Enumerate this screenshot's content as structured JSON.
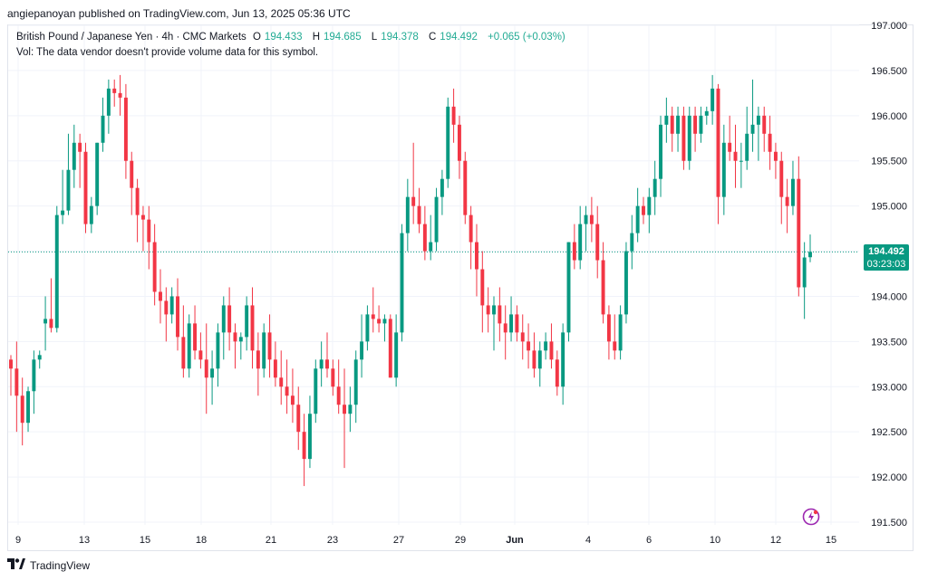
{
  "header": {
    "publisher": "angiepanoyan published on TradingView.com, Jun 13, 2025 05:36 UTC"
  },
  "legend": {
    "symbol": "British Pound / Japanese Yen · 4h · CMC Markets",
    "open_label": "O",
    "open": "194.433",
    "high_label": "H",
    "high": "194.685",
    "low_label": "L",
    "low": "194.378",
    "close_label": "C",
    "close": "194.492",
    "change": "+0.065 (+0.03%)",
    "volume_note": "Vol: The data vendor doesn't provide volume data for this symbol."
  },
  "price_tag": {
    "price": "194.492",
    "countdown": "03:23:03"
  },
  "footer": {
    "brand": "TradingView"
  },
  "icons": {
    "brand": "tradingview-logo-icon",
    "alert": "lightning-bolt-icon"
  },
  "colors": {
    "up": "#089981",
    "down": "#f23645",
    "grid": "#f0f3fa",
    "price_line": "#089981"
  },
  "chart_data": {
    "type": "candlestick",
    "title": "British Pound / Japanese Yen · 4h · CMC Markets",
    "ylim": [
      191.5,
      197.0
    ],
    "y_ticks": [
      "191.500",
      "192.000",
      "192.500",
      "193.000",
      "193.500",
      "194.000",
      "194.500",
      "195.000",
      "195.500",
      "196.000",
      "196.500",
      "197.000"
    ],
    "x_ticks": [
      "9",
      "13",
      "15",
      "18",
      "21",
      "23",
      "27",
      "29",
      "Jun",
      "4",
      "6",
      "10",
      "12",
      "15"
    ],
    "current_price": 194.492,
    "grid": true,
    "candles": [
      [
        193.3,
        193.35,
        192.9,
        193.2
      ],
      [
        193.2,
        193.5,
        192.5,
        192.9
      ],
      [
        192.9,
        193.1,
        192.35,
        192.6
      ],
      [
        192.6,
        193.0,
        192.5,
        192.95
      ],
      [
        192.95,
        193.4,
        192.7,
        193.3
      ],
      [
        193.3,
        193.4,
        193.2,
        193.35
      ],
      [
        193.7,
        194.0,
        193.4,
        193.75
      ],
      [
        193.75,
        194.2,
        193.6,
        193.65
      ],
      [
        193.65,
        195.0,
        193.6,
        194.9
      ],
      [
        194.9,
        195.4,
        194.8,
        194.95
      ],
      [
        194.95,
        195.8,
        194.9,
        195.4
      ],
      [
        195.4,
        195.9,
        195.2,
        195.7
      ],
      [
        195.7,
        195.8,
        195.2,
        195.6
      ],
      [
        195.6,
        195.7,
        194.7,
        194.8
      ],
      [
        194.8,
        195.1,
        194.7,
        195.0
      ],
      [
        195.0,
        195.7,
        194.9,
        195.7
      ],
      [
        195.7,
        196.2,
        195.6,
        196.0
      ],
      [
        196.0,
        196.4,
        195.8,
        196.3
      ],
      [
        196.3,
        196.4,
        196.1,
        196.25
      ],
      [
        196.25,
        196.45,
        196.0,
        196.2
      ],
      [
        196.2,
        196.35,
        195.3,
        195.5
      ],
      [
        195.5,
        195.6,
        194.9,
        195.2
      ],
      [
        195.2,
        195.3,
        194.6,
        194.9
      ],
      [
        194.9,
        195.0,
        194.5,
        194.85
      ],
      [
        194.85,
        195.0,
        194.3,
        194.6
      ],
      [
        194.6,
        194.8,
        193.9,
        194.05
      ],
      [
        194.05,
        194.3,
        193.7,
        193.95
      ],
      [
        193.95,
        194.1,
        193.5,
        193.8
      ],
      [
        193.8,
        194.1,
        193.7,
        194.0
      ],
      [
        194.0,
        194.2,
        193.4,
        193.55
      ],
      [
        193.55,
        193.9,
        193.1,
        193.2
      ],
      [
        193.2,
        193.8,
        193.1,
        193.7
      ],
      [
        193.7,
        193.9,
        193.3,
        193.4
      ],
      [
        193.4,
        193.6,
        193.2,
        193.3
      ],
      [
        193.3,
        193.7,
        192.7,
        193.1
      ],
      [
        193.1,
        193.4,
        192.8,
        193.2
      ],
      [
        193.2,
        193.7,
        193.0,
        193.6
      ],
      [
        193.6,
        194.0,
        193.3,
        193.9
      ],
      [
        193.9,
        194.1,
        193.4,
        193.6
      ],
      [
        193.6,
        193.7,
        193.2,
        193.5
      ],
      [
        193.5,
        193.6,
        193.3,
        193.55
      ],
      [
        193.55,
        194.0,
        193.4,
        193.9
      ],
      [
        193.9,
        194.1,
        193.2,
        193.4
      ],
      [
        193.4,
        193.6,
        192.9,
        193.2
      ],
      [
        193.2,
        193.7,
        193.1,
        193.6
      ],
      [
        193.6,
        193.8,
        193.1,
        193.3
      ],
      [
        193.3,
        193.5,
        193.0,
        193.1
      ],
      [
        193.1,
        193.4,
        192.8,
        193.0
      ],
      [
        193.0,
        193.3,
        192.7,
        192.9
      ],
      [
        192.9,
        193.2,
        192.6,
        192.8
      ],
      [
        192.8,
        193.0,
        192.3,
        192.5
      ],
      [
        192.5,
        192.7,
        191.9,
        192.2
      ],
      [
        192.2,
        192.9,
        192.1,
        192.7
      ],
      [
        192.7,
        193.3,
        192.6,
        193.2
      ],
      [
        193.2,
        193.5,
        193.0,
        193.3
      ],
      [
        193.3,
        193.6,
        193.1,
        193.2
      ],
      [
        193.2,
        193.3,
        192.9,
        193.0
      ],
      [
        193.0,
        193.3,
        192.7,
        192.8
      ],
      [
        192.8,
        193.2,
        192.1,
        192.7
      ],
      [
        192.7,
        193.0,
        192.5,
        192.8
      ],
      [
        192.8,
        193.4,
        192.6,
        193.3
      ],
      [
        193.3,
        193.8,
        193.1,
        193.5
      ],
      [
        193.5,
        193.9,
        193.4,
        193.8
      ],
      [
        193.8,
        194.1,
        193.6,
        193.75
      ],
      [
        193.75,
        193.9,
        193.6,
        193.7
      ],
      [
        193.7,
        193.8,
        193.5,
        193.75
      ],
      [
        193.75,
        193.8,
        193.1,
        193.1
      ],
      [
        193.1,
        193.8,
        193.0,
        193.6
      ],
      [
        193.6,
        194.8,
        193.5,
        194.7
      ],
      [
        194.7,
        195.3,
        194.5,
        195.1
      ],
      [
        195.1,
        195.7,
        194.8,
        195.0
      ],
      [
        195.0,
        195.2,
        194.7,
        194.8
      ],
      [
        194.8,
        195.0,
        194.4,
        194.5
      ],
      [
        194.5,
        194.9,
        194.4,
        194.6
      ],
      [
        194.6,
        195.2,
        194.5,
        195.1
      ],
      [
        195.1,
        195.4,
        194.9,
        195.3
      ],
      [
        195.3,
        196.2,
        195.2,
        196.1
      ],
      [
        196.1,
        196.3,
        195.7,
        195.9
      ],
      [
        195.9,
        196.0,
        195.3,
        195.5
      ],
      [
        195.5,
        195.6,
        194.8,
        194.9
      ],
      [
        194.9,
        195.0,
        194.3,
        194.6
      ],
      [
        194.6,
        194.8,
        194.0,
        194.3
      ],
      [
        194.3,
        194.5,
        193.6,
        193.9
      ],
      [
        193.9,
        194.1,
        193.6,
        193.8
      ],
      [
        193.8,
        194.0,
        193.4,
        193.9
      ],
      [
        193.9,
        194.1,
        193.5,
        193.7
      ],
      [
        193.7,
        193.9,
        193.3,
        193.6
      ],
      [
        193.6,
        194.0,
        193.5,
        193.8
      ],
      [
        193.8,
        193.9,
        193.5,
        193.6
      ],
      [
        193.6,
        193.8,
        193.3,
        193.5
      ],
      [
        193.5,
        193.7,
        193.2,
        193.4
      ],
      [
        193.4,
        193.6,
        193.1,
        193.2
      ],
      [
        193.2,
        193.5,
        193.0,
        193.4
      ],
      [
        193.4,
        193.6,
        193.3,
        193.5
      ],
      [
        193.5,
        193.7,
        193.2,
        193.3
      ],
      [
        193.3,
        193.4,
        192.9,
        193.0
      ],
      [
        193.0,
        193.7,
        192.8,
        193.6
      ],
      [
        193.6,
        194.6,
        193.5,
        194.6
      ],
      [
        194.6,
        194.8,
        194.3,
        194.4
      ],
      [
        194.4,
        195.0,
        194.3,
        194.8
      ],
      [
        194.8,
        195.0,
        194.5,
        194.9
      ],
      [
        194.9,
        195.1,
        194.6,
        194.8
      ],
      [
        194.8,
        195.0,
        194.2,
        194.4
      ],
      [
        194.4,
        194.6,
        193.7,
        193.8
      ],
      [
        193.8,
        193.9,
        193.3,
        193.5
      ],
      [
        193.5,
        193.8,
        193.3,
        193.4
      ],
      [
        193.4,
        193.9,
        193.3,
        193.8
      ],
      [
        193.8,
        194.6,
        193.7,
        194.5
      ],
      [
        194.5,
        194.9,
        194.3,
        194.7
      ],
      [
        194.7,
        195.2,
        194.6,
        195.0
      ],
      [
        195.0,
        195.1,
        194.8,
        194.9
      ],
      [
        194.9,
        195.2,
        194.7,
        195.1
      ],
      [
        195.1,
        195.5,
        194.9,
        195.3
      ],
      [
        195.3,
        196.0,
        195.1,
        195.9
      ],
      [
        195.9,
        196.2,
        195.7,
        196.0
      ],
      [
        196.0,
        196.1,
        195.6,
        195.8
      ],
      [
        195.8,
        196.1,
        195.6,
        196.0
      ],
      [
        196.0,
        196.1,
        195.4,
        195.5
      ],
      [
        195.5,
        196.1,
        195.4,
        196.0
      ],
      [
        196.0,
        196.1,
        195.6,
        195.8
      ],
      [
        195.8,
        196.1,
        195.7,
        196.0
      ],
      [
        196.0,
        196.1,
        195.9,
        196.05
      ],
      [
        196.05,
        196.45,
        195.9,
        196.3
      ],
      [
        196.3,
        196.35,
        194.8,
        195.1
      ],
      [
        195.1,
        195.9,
        194.9,
        195.7
      ],
      [
        195.7,
        196.0,
        195.5,
        195.6
      ],
      [
        195.6,
        195.9,
        195.2,
        195.5
      ],
      [
        195.5,
        195.7,
        195.2,
        195.5
      ],
      [
        195.5,
        196.1,
        195.4,
        195.8
      ],
      [
        195.8,
        196.4,
        195.6,
        195.9
      ],
      [
        195.9,
        196.1,
        195.5,
        196.0
      ],
      [
        196.0,
        196.1,
        195.6,
        195.8
      ],
      [
        195.8,
        196.0,
        195.4,
        195.6
      ],
      [
        195.6,
        195.7,
        195.3,
        195.5
      ],
      [
        195.5,
        195.6,
        194.8,
        195.1
      ],
      [
        195.1,
        195.3,
        194.7,
        195.0
      ],
      [
        195.0,
        195.5,
        194.9,
        195.3
      ],
      [
        195.3,
        195.55,
        194.0,
        194.1
      ],
      [
        194.1,
        194.6,
        193.75,
        194.43
      ],
      [
        194.433,
        194.685,
        194.378,
        194.492
      ]
    ]
  }
}
